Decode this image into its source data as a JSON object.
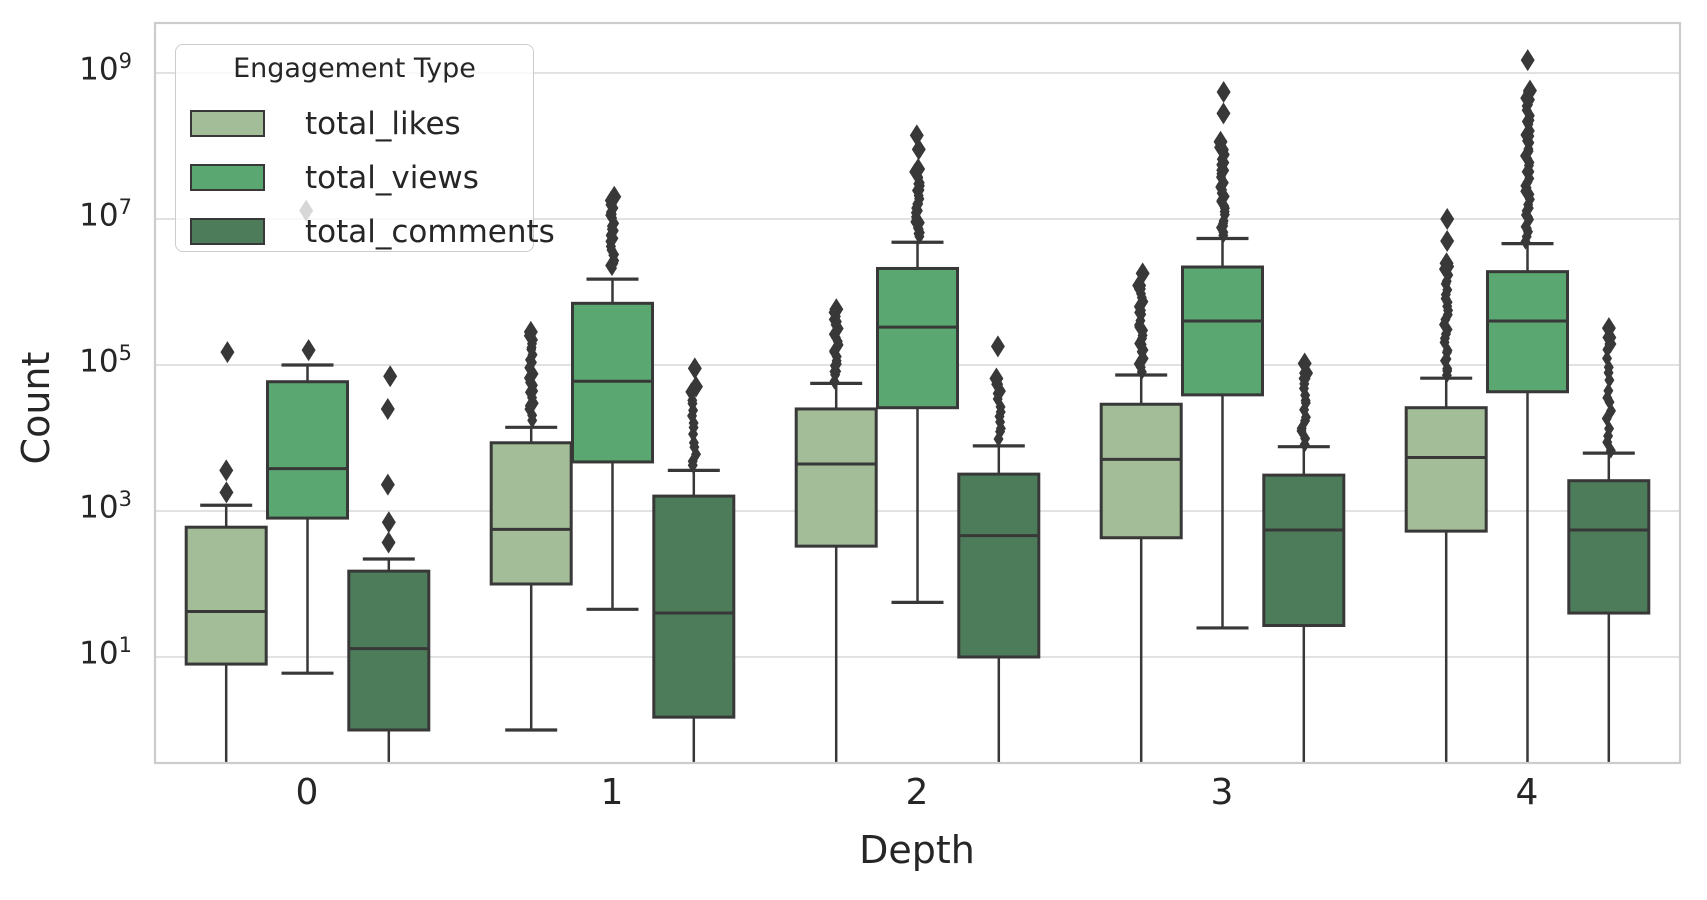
{
  "axes": {
    "ylabel": "Count",
    "xlabel": "Depth",
    "yticks": [
      {
        "base": "10",
        "exp": "9"
      },
      {
        "base": "10",
        "exp": "7"
      },
      {
        "base": "10",
        "exp": "5"
      },
      {
        "base": "10",
        "exp": "3"
      },
      {
        "base": "10",
        "exp": "1"
      }
    ]
  },
  "legend": {
    "title": "Engagement Type",
    "items": [
      {
        "label": "total_likes",
        "color": "#a2bd97"
      },
      {
        "label": "total_views",
        "color": "#5aa771"
      },
      {
        "label": "total_comments",
        "color": "#4d7c5b"
      }
    ]
  },
  "style": {
    "edge_color": "#383838",
    "grid_color": "#d8d8d8",
    "spine_color": "#cccccc",
    "text_color": "#262626",
    "background": "#ffffff"
  },
  "chart_data": {
    "type": "box",
    "title": "",
    "xlabel": "Depth",
    "ylabel": "Count",
    "y_scale": "log",
    "ylim": [
      0.35,
      5000000000
    ],
    "grid": "horizontal",
    "legend_position": "upper left",
    "legend_title": "Engagement Type",
    "categories": [
      "0",
      "1",
      "2",
      "3",
      "4"
    ],
    "series": [
      {
        "name": "total_likes",
        "color": "#a2bd97",
        "boxes": [
          {
            "depth": "0",
            "whislo": null,
            "q1": 8,
            "med": 42,
            "q3": 600,
            "whishi": 1200,
            "fliers_column": null,
            "fliers": [
              1800,
              3600,
              150000
            ]
          },
          {
            "depth": "1",
            "whislo": 1,
            "q1": 100,
            "med": 560,
            "q3": 8600,
            "whishi": 14000,
            "fliers_column": {
              "low": 18000,
              "high": 300000,
              "n": 22
            },
            "fliers": []
          },
          {
            "depth": "2",
            "whislo": null,
            "q1": 330,
            "med": 4400,
            "q3": 25000,
            "whishi": 56000,
            "fliers_column": {
              "low": 62000,
              "high": 600000,
              "n": 22
            },
            "fliers": []
          },
          {
            "depth": "3",
            "whislo": null,
            "q1": 430,
            "med": 5100,
            "q3": 29000,
            "whishi": 73000,
            "fliers_column": {
              "low": 80000,
              "high": 1200000,
              "n": 24
            },
            "fliers": [
              1800000
            ]
          },
          {
            "depth": "4",
            "whislo": null,
            "q1": 530,
            "med": 5400,
            "q3": 26000,
            "whishi": 66000,
            "fliers_column": {
              "low": 70000,
              "high": 2600000,
              "n": 26
            },
            "fliers": [
              5000000,
              10000000
            ]
          }
        ]
      },
      {
        "name": "total_views",
        "color": "#5aa771",
        "boxes": [
          {
            "depth": "0",
            "whislo": 6,
            "q1": 800,
            "med": 3800,
            "q3": 59000,
            "whishi": 100000,
            "fliers_column": null,
            "fliers": [
              160000,
              13000000
            ]
          },
          {
            "depth": "1",
            "whislo": 45,
            "q1": 4700,
            "med": 60000,
            "q3": 700000,
            "whishi": 1500000,
            "fliers_column": {
              "low": 2100000,
              "high": 20000000,
              "n": 26
            },
            "fliers": []
          },
          {
            "depth": "2",
            "whislo": 56,
            "q1": 26000,
            "med": 330000,
            "q3": 2100000,
            "whishi": 4800000,
            "fliers_column": {
              "low": 5500000,
              "high": 46000000,
              "n": 26
            },
            "fliers": [
              90000000,
              140000000
            ]
          },
          {
            "depth": "3",
            "whislo": 25,
            "q1": 39000,
            "med": 400000,
            "q3": 2200000,
            "whishi": 5400000,
            "fliers_column": {
              "low": 6000000,
              "high": 110000000,
              "n": 30
            },
            "fliers": [
              280000000,
              550000000
            ]
          },
          {
            "depth": "4",
            "whislo": null,
            "q1": 43000,
            "med": 400000,
            "q3": 1900000,
            "whishi": 4600000,
            "fliers_column": {
              "low": 5200000,
              "high": 600000000,
              "n": 42
            },
            "fliers": [
              1500000000
            ]
          }
        ]
      },
      {
        "name": "total_comments",
        "color": "#4d7c5b",
        "boxes": [
          {
            "depth": "0",
            "whislo": null,
            "q1": 1,
            "med": 13,
            "q3": 150,
            "whishi": 220,
            "fliers_column": null,
            "fliers": [
              370,
              700,
              2300,
              25000,
              70000
            ]
          },
          {
            "depth": "1",
            "whislo": null,
            "q1": 1.5,
            "med": 40,
            "q3": 1600,
            "whishi": 3600,
            "fliers_column": {
              "low": 4200,
              "high": 50000,
              "n": 14
            },
            "fliers": [
              90000
            ]
          },
          {
            "depth": "2",
            "whislo": null,
            "q1": 10,
            "med": 460,
            "q3": 3200,
            "whishi": 7800,
            "fliers_column": {
              "low": 10000,
              "high": 65000,
              "n": 12
            },
            "fliers": [
              180000
            ]
          },
          {
            "depth": "3",
            "whislo": null,
            "q1": 27,
            "med": 550,
            "q3": 3100,
            "whishi": 7600,
            "fliers_column": {
              "low": 8500,
              "high": 80000,
              "n": 14
            },
            "fliers": [
              105000
            ]
          },
          {
            "depth": "4",
            "whislo": null,
            "q1": 40,
            "med": 550,
            "q3": 2600,
            "whishi": 6200,
            "fliers_column": {
              "low": 7000,
              "high": 250000,
              "n": 16
            },
            "fliers": [
              320000
            ]
          }
        ]
      }
    ]
  }
}
